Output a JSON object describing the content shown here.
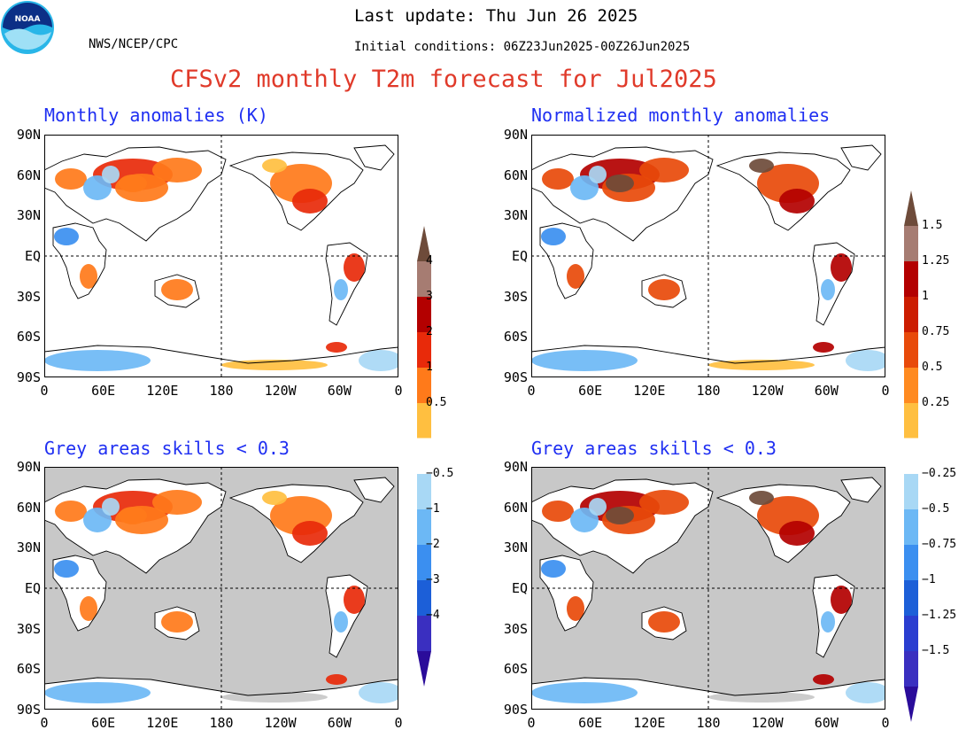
{
  "header": {
    "agency": "NWS/NCEP/CPC",
    "last_update": "Last update: Thu Jun 26 2025",
    "initial_conditions": "Initial conditions: 06Z23Jun2025-00Z26Jun2025",
    "title": "CFSv2 monthly T2m forecast for Jul2025",
    "title_color": "#e03a2a",
    "logo_text": "NOAA"
  },
  "panels": {
    "top_left": {
      "title": "Monthly anomalies (K)"
    },
    "top_right": {
      "title": "Normalized monthly anomalies"
    },
    "bottom_left": {
      "title": "Grey areas skills < 0.3"
    },
    "bottom_right": {
      "title": "Grey areas skills < 0.3"
    }
  },
  "axes": {
    "lat_labels": [
      "90N",
      "60N",
      "30N",
      "EQ",
      "30S",
      "60S",
      "90S"
    ],
    "lon_labels": [
      "0",
      "60E",
      "120E",
      "180",
      "120W",
      "60W",
      "0"
    ]
  },
  "colorbars": {
    "anomaly": {
      "labels": [
        "4",
        "3",
        "2",
        "1",
        "0.5",
        "−0.5",
        "−1",
        "−2",
        "−3",
        "−4"
      ],
      "colors": [
        "#6e4b3a",
        "#a67c72",
        "#b30000",
        "#e82a0a",
        "#ff7a1a",
        "#ffbf40",
        "#ffffff",
        "#a8d8f5",
        "#6cb8f5",
        "#3b8ff0",
        "#1c5fd8",
        "#3a2fc0",
        "#2a0c9a"
      ]
    },
    "normalized": {
      "labels": [
        "1.5",
        "1.25",
        "1",
        "0.75",
        "0.5",
        "0.25",
        "−0.25",
        "−0.5",
        "−0.75",
        "−1",
        "−1.25",
        "−1.5"
      ],
      "colors": [
        "#6e4b3a",
        "#a67c72",
        "#b30000",
        "#cc1c00",
        "#e84a0a",
        "#ff8a20",
        "#ffbf40",
        "#ffffff",
        "#a8d8f5",
        "#6cb8f5",
        "#3b8ff0",
        "#1c5fd8",
        "#2a3ed0",
        "#3a2fc0",
        "#2a0c9a"
      ]
    }
  },
  "colors": {
    "skill_mask": "#c8c8c8",
    "title_blue": "#1f2ff2"
  }
}
